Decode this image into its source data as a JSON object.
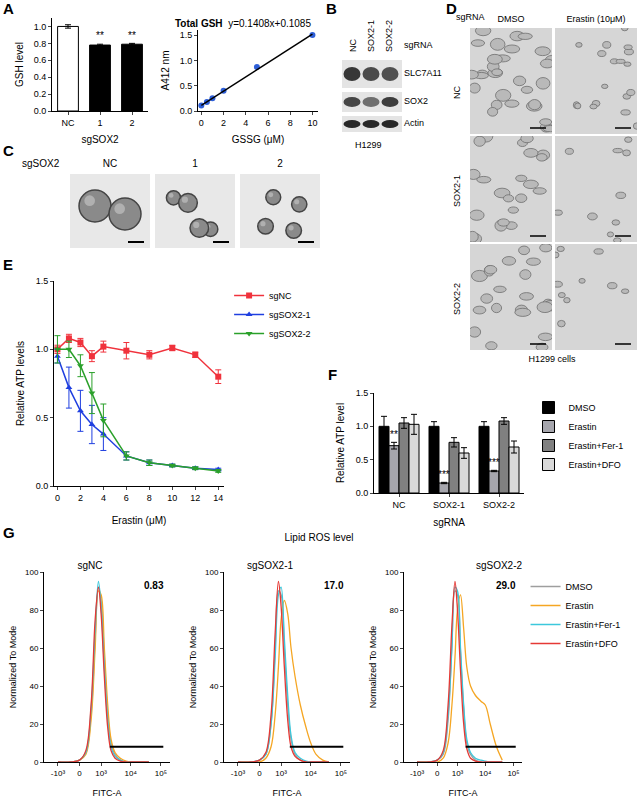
{
  "panel_labels": [
    "A",
    "B",
    "C",
    "D",
    "E",
    "F",
    "G"
  ],
  "blot": {
    "header": "sgRNA",
    "lanes": [
      "NC",
      "SOX2-1",
      "SOX2-2"
    ],
    "rows": [
      "SLC7A11",
      "SOX2",
      "Actin"
    ],
    "cell_line": "H1299"
  },
  "spheres": {
    "header": "sgSOX2",
    "columns": [
      "NC",
      "1",
      "2"
    ]
  },
  "micrographs": {
    "header": "sgRNA",
    "columns": [
      "DMSO",
      "Erastin (10μM)"
    ],
    "rows": [
      "NC",
      "SOX2-1",
      "SOX2-2"
    ],
    "cell_line": "H1299 cells"
  },
  "flow_title": "Lipid ROS level",
  "chart_data": [
    {
      "type": "bar",
      "xlabel": "sgSOX2",
      "ylabel": "GSH level",
      "categories": [
        "NC",
        "1",
        "2"
      ],
      "values": [
        1.0,
        0.78,
        0.79
      ],
      "errors": [
        0.02,
        0.01,
        0.01
      ],
      "colors": [
        "#ffffff",
        "#000000",
        "#000000"
      ],
      "ylim": [
        0,
        1.1
      ],
      "yticks": [
        {
          "value": 0,
          "label": "0.0"
        },
        {
          "value": 0.2,
          "label": "0.2"
        },
        {
          "value": 0.4,
          "label": "0.4"
        },
        {
          "value": 0.6,
          "label": "0.6"
        },
        {
          "value": 0.8,
          "label": "0.8"
        },
        {
          "value": 1,
          "label": "1.0"
        }
      ],
      "annotations": [
        {
          "category": "1",
          "y": 0.8,
          "text": "**"
        },
        {
          "category": "2",
          "y": 0.81,
          "text": "**"
        }
      ]
    },
    {
      "type": "scatter",
      "title": "Total GSH",
      "subtitle": "y=0.1408x+0.1085",
      "xlabel": "GSSG (μM)",
      "ylabel": "A412 nm",
      "x": [
        0,
        0.5,
        1,
        2,
        5,
        10
      ],
      "xlim": [
        -0.3,
        10.5
      ],
      "xticks": [
        0,
        2,
        4,
        6,
        8,
        10
      ],
      "ylim": [
        0,
        1.6
      ],
      "yticks": [
        {
          "value": 0,
          "label": "0.0"
        },
        {
          "value": 0.5,
          "label": "0.5"
        },
        {
          "value": 1,
          "label": "1.0"
        },
        {
          "value": 1.5,
          "label": "1.5"
        }
      ],
      "series": [
        {
          "type": "scatter",
          "marker": "circle",
          "color": "#2e5fd8",
          "values": [
            0.11,
            0.18,
            0.25,
            0.4,
            0.87,
            1.5
          ]
        },
        {
          "type": "line",
          "color": "#000000",
          "x": [
            0,
            10
          ],
          "values": [
            0.11,
            1.52
          ]
        }
      ]
    },
    {
      "type": "line",
      "xlabel": "Erastin (μM)",
      "ylabel": "Relative ATP levels",
      "legend": "top-right",
      "x": [
        0,
        1,
        2,
        3,
        4,
        6,
        8,
        10,
        12,
        14
      ],
      "xlim": [
        -0.3,
        14.5
      ],
      "xticks": [
        0,
        2,
        4,
        6,
        8,
        10,
        12,
        14
      ],
      "ylim": [
        0,
        1.5
      ],
      "yticks": [
        {
          "value": 0,
          "label": "0.0"
        },
        {
          "value": 0.5,
          "label": "0.5"
        },
        {
          "value": 1,
          "label": "1.0"
        },
        {
          "value": 1.5,
          "label": "1.5"
        }
      ],
      "series": [
        {
          "name": "sgNC",
          "color": "#f0323c",
          "marker": "square",
          "values": [
            1.0,
            1.08,
            1.05,
            0.95,
            1.02,
            0.99,
            0.96,
            1.01,
            0.96,
            0.8
          ],
          "errors": [
            0.03,
            0.03,
            0.03,
            0.04,
            0.04,
            0.06,
            0.03,
            0.02,
            0.02,
            0.05
          ]
        },
        {
          "name": "sgSOX2-1",
          "color": "#1f3fe0",
          "marker": "triangle-up",
          "values": [
            0.95,
            0.72,
            0.55,
            0.45,
            0.38,
            0.22,
            0.17,
            0.15,
            0.13,
            0.12
          ],
          "errors": [
            0.05,
            0.15,
            0.15,
            0.14,
            0.12,
            0.03,
            0.02,
            0.01,
            0.01,
            0.01
          ]
        },
        {
          "name": "sgSOX2-2",
          "color": "#2aa02a",
          "marker": "triangle-down",
          "values": [
            1.0,
            1.0,
            0.88,
            0.68,
            0.48,
            0.22,
            0.17,
            0.15,
            0.13,
            0.11
          ],
          "errors": [
            0.1,
            0.06,
            0.08,
            0.15,
            0.12,
            0.03,
            0.02,
            0.01,
            0.01,
            0.01
          ]
        }
      ]
    },
    {
      "type": "bar",
      "xlabel": "sgRNA",
      "ylabel": "Relative ATP level",
      "legend": "top-right",
      "categories": [
        "NC",
        "SOX2-1",
        "SOX2-2"
      ],
      "ylim": [
        0,
        1.5
      ],
      "yticks": [
        {
          "value": 0,
          "label": "0.0"
        },
        {
          "value": 0.5,
          "label": "0.5"
        },
        {
          "value": 1,
          "label": "1.0"
        },
        {
          "value": 1.5,
          "label": "1.5"
        }
      ],
      "series": [
        {
          "name": "DMSO",
          "color": "#000000",
          "values": [
            1.0,
            1.0,
            1.0
          ],
          "errors": [
            0.15,
            0.07,
            0.07
          ]
        },
        {
          "name": "Erastin",
          "color": "#a6a6ad",
          "values": [
            0.71,
            0.15,
            0.33
          ],
          "errors": [
            0.05,
            0.01,
            0.01
          ]
        },
        {
          "name": "Erastin+Fer-1",
          "color": "#808080",
          "values": [
            1.05,
            0.76,
            1.08
          ],
          "errors": [
            0.08,
            0.07,
            0.05
          ]
        },
        {
          "name": "Erastin+DFO",
          "color": "#d9d9d9",
          "values": [
            1.03,
            0.6,
            0.69
          ],
          "errors": [
            0.15,
            0.08,
            0.09
          ]
        }
      ],
      "annotations": [
        {
          "category": "NC",
          "series": "Erastin",
          "y": 0.77,
          "text": "**"
        },
        {
          "category": "SOX2-1",
          "series": "Erastin",
          "y": 0.17,
          "text": "***"
        },
        {
          "category": "SOX2-2",
          "series": "Erastin",
          "y": 0.35,
          "text": "***"
        }
      ]
    },
    {
      "type": "line",
      "title": "sgNC",
      "xlabel": "FITC-A",
      "ylabel": "Normalized To Mode",
      "annotations": [
        {
          "text": "0.83"
        }
      ],
      "x": [
        -1000,
        -300,
        0,
        200,
        400,
        600,
        800,
        1000,
        1300,
        1700,
        2200,
        3000,
        4500,
        7000,
        10000,
        15000,
        25000,
        40000
      ],
      "xlim": [
        -3000,
        200000
      ],
      "xticks": [
        {
          "value": -1000,
          "label": "-10³"
        },
        0,
        {
          "value": 1000,
          "label": "10³"
        },
        {
          "value": 10000,
          "label": "10⁴"
        },
        {
          "value": 100000,
          "label": "10⁵"
        }
      ],
      "ylim": [
        0,
        100
      ],
      "yticks": [
        0,
        20,
        40,
        60,
        80,
        100
      ],
      "gate": {
        "x": [
          2000,
          120000
        ],
        "y": 8
      },
      "series": [
        {
          "name": "DMSO",
          "color": "#9e9e9e",
          "values": [
            0,
            0,
            1,
            5,
            25,
            65,
            92,
            85,
            55,
            25,
            10,
            4,
            1,
            0,
            0,
            0,
            0,
            0
          ]
        },
        {
          "name": "Erastin",
          "color": "#f5a623",
          "values": [
            0,
            0,
            1,
            4,
            22,
            60,
            90,
            88,
            60,
            30,
            12,
            5,
            2,
            0.5,
            0,
            0,
            0,
            0
          ]
        },
        {
          "name": "Erastin+Fer-1",
          "color": "#3cc8dc",
          "values": [
            0,
            0,
            1,
            5,
            28,
            70,
            95,
            82,
            50,
            22,
            8,
            3,
            1,
            0,
            0,
            0,
            0,
            0
          ]
        },
        {
          "name": "Erastin+DFO",
          "color": "#e53935",
          "values": [
            0,
            0,
            1,
            6,
            30,
            75,
            92,
            78,
            45,
            18,
            6,
            2,
            0.5,
            0,
            0,
            0,
            0,
            0
          ]
        }
      ]
    },
    {
      "type": "line",
      "title": "sgSOX2-1",
      "xlabel": "FITC-A",
      "ylabel": "Normalized To Mode",
      "annotations": [
        {
          "text": "17.0"
        }
      ],
      "x": [
        -1000,
        -300,
        0,
        200,
        400,
        600,
        800,
        1000,
        1300,
        1700,
        2200,
        3000,
        4500,
        7000,
        10000,
        15000,
        25000,
        40000
      ],
      "xlim": [
        -3000,
        200000
      ],
      "xticks": [
        {
          "value": -1000,
          "label": "-10³"
        },
        0,
        {
          "value": 1000,
          "label": "10³"
        },
        {
          "value": 10000,
          "label": "10⁴"
        },
        {
          "value": 100000,
          "label": "10⁵"
        }
      ],
      "ylim": [
        0,
        100
      ],
      "yticks": [
        0,
        20,
        40,
        60,
        80,
        100
      ],
      "gate": {
        "x": [
          2000,
          120000
        ],
        "y": 8
      },
      "series": [
        {
          "name": "DMSO",
          "color": "#9e9e9e",
          "values": [
            0,
            0,
            1,
            4,
            20,
            60,
            90,
            88,
            60,
            30,
            12,
            4,
            1,
            0,
            0,
            0,
            0,
            0
          ]
        },
        {
          "name": "Erastin",
          "color": "#f5a623",
          "values": [
            0,
            0,
            0,
            2,
            8,
            25,
            50,
            75,
            85,
            78,
            60,
            45,
            30,
            18,
            10,
            4,
            1,
            0
          ]
        },
        {
          "name": "Erastin+Fer-1",
          "color": "#3cc8dc",
          "values": [
            0,
            0,
            1,
            4,
            20,
            55,
            88,
            92,
            65,
            35,
            14,
            5,
            2,
            0.5,
            0,
            0,
            0,
            0
          ]
        },
        {
          "name": "Erastin+DFO",
          "color": "#e53935",
          "values": [
            0,
            0,
            1,
            5,
            25,
            68,
            95,
            82,
            50,
            22,
            8,
            3,
            1,
            0,
            0,
            0,
            0,
            0
          ]
        }
      ]
    },
    {
      "type": "line",
      "title": "sgSOX2-2",
      "xlabel": "FITC-A",
      "ylabel": "Normalized To Mode",
      "legend": "right",
      "annotations": [
        {
          "text": "29.0"
        }
      ],
      "x": [
        -1000,
        -300,
        0,
        200,
        400,
        600,
        800,
        1000,
        1300,
        1700,
        2200,
        3000,
        4500,
        7000,
        10000,
        15000,
        25000,
        40000
      ],
      "xlim": [
        -3000,
        200000
      ],
      "xticks": [
        {
          "value": -1000,
          "label": "-10³"
        },
        0,
        {
          "value": 1000,
          "label": "10³"
        },
        {
          "value": 10000,
          "label": "10⁴"
        },
        {
          "value": 100000,
          "label": "10⁵"
        }
      ],
      "ylim": [
        0,
        100
      ],
      "yticks": [
        0,
        20,
        40,
        60,
        80,
        100
      ],
      "gate": {
        "x": [
          2000,
          120000
        ],
        "y": 8
      },
      "series": [
        {
          "name": "DMSO",
          "color": "#9e9e9e",
          "values": [
            0,
            0,
            1,
            4,
            22,
            62,
            90,
            88,
            58,
            28,
            10,
            4,
            1,
            0,
            0,
            0,
            0,
            0
          ]
        },
        {
          "name": "Erastin",
          "color": "#f5a623",
          "values": [
            0,
            0,
            0,
            2,
            10,
            30,
            55,
            80,
            88,
            70,
            50,
            40,
            35,
            32,
            30,
            20,
            8,
            1
          ]
        },
        {
          "name": "Erastin+Fer-1",
          "color": "#3cc8dc",
          "values": [
            0,
            0,
            1,
            5,
            25,
            60,
            92,
            90,
            60,
            30,
            12,
            5,
            2,
            1,
            0.5,
            0,
            0,
            0
          ]
        },
        {
          "name": "Erastin+DFO",
          "color": "#e53935",
          "values": [
            0,
            0,
            1,
            6,
            30,
            72,
            95,
            80,
            48,
            20,
            7,
            2,
            0.5,
            0,
            0,
            0,
            0,
            0
          ]
        }
      ]
    }
  ]
}
